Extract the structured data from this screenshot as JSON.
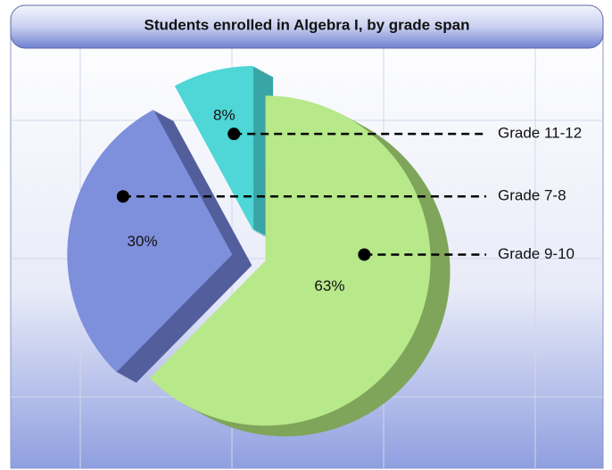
{
  "chart_data": {
    "type": "pie",
    "title": "Students enrolled in Algebra I, by grade span",
    "categories": [
      "Grade 9-10",
      "Grade 7-8",
      "Grade 11-12"
    ],
    "values": [
      63,
      30,
      8
    ],
    "value_labels": [
      "63%",
      "30%",
      "8%"
    ],
    "colors": [
      "#b7e88a",
      "#7e8fdc",
      "#4fd6d6"
    ],
    "side_colors": [
      "#7fa55a",
      "#535f9c",
      "#3aa5a5"
    ]
  }
}
